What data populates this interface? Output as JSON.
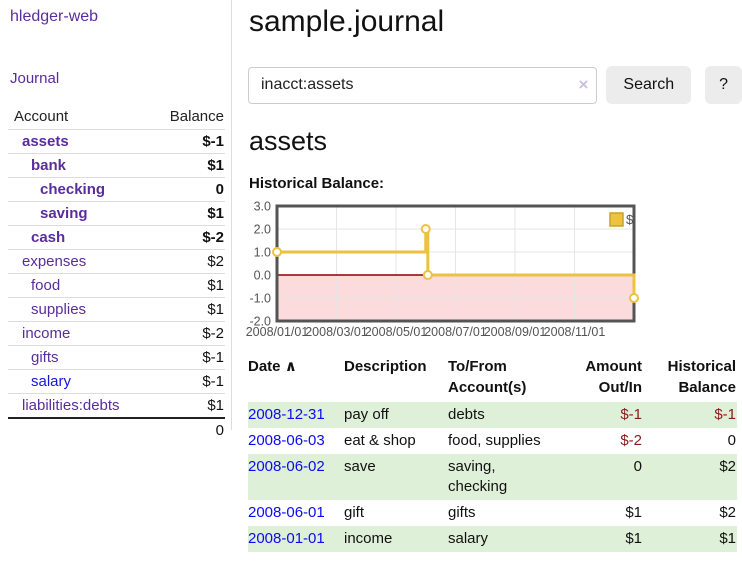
{
  "app": {
    "brand": "hledger-web"
  },
  "sidebar": {
    "journal_link": "Journal",
    "accounts_table": {
      "headers": {
        "account": "Account",
        "balance": "Balance"
      },
      "rows": [
        {
          "account": "assets",
          "balance": "$-1"
        },
        {
          "account": "bank",
          "balance": "$1"
        },
        {
          "account": "checking",
          "balance": "0"
        },
        {
          "account": "saving",
          "balance": "$1"
        },
        {
          "account": "cash",
          "balance": "$-2"
        },
        {
          "account": "expenses",
          "balance": "$2"
        },
        {
          "account": "food",
          "balance": "$1"
        },
        {
          "account": "supplies",
          "balance": "$1"
        },
        {
          "account": "income",
          "balance": "$-2"
        },
        {
          "account": "gifts",
          "balance": "$-1"
        },
        {
          "account": "salary",
          "balance": "$-1"
        },
        {
          "account": "liabilities:debts",
          "balance": "$1"
        }
      ],
      "total": "0"
    }
  },
  "header": {
    "title": "sample.journal"
  },
  "search": {
    "query": "inacct:assets",
    "clear_icon": "×",
    "search_label": "Search",
    "help_label": "?"
  },
  "account_page": {
    "title": "assets",
    "chart_heading": "Historical Balance:"
  },
  "chart_data": {
    "type": "line",
    "title": "Historical Balance",
    "legend_position": "top-right",
    "grid": true,
    "xlim": [
      0,
      12
    ],
    "ylim": [
      -2,
      3
    ],
    "y_ticks": [
      3.0,
      2.0,
      1.0,
      0.0,
      -1.0,
      -2.0
    ],
    "x_ticks": [
      {
        "x": 0,
        "label": "2008/01/01"
      },
      {
        "x": 2,
        "label": "2008/03/01"
      },
      {
        "x": 4,
        "label": "2008/05/01"
      },
      {
        "x": 6,
        "label": "2008/07/01"
      },
      {
        "x": 8,
        "label": "2008/09/01"
      },
      {
        "x": 10,
        "label": "2008/11/01"
      }
    ],
    "series": [
      {
        "name": "$",
        "color": "#edc240",
        "step": true,
        "points": [
          {
            "date": "2008-01-01",
            "x": 0,
            "y": 1
          },
          {
            "date": "2008-06-01",
            "x": 5,
            "y": 2
          },
          {
            "date": "2008-06-03",
            "x": 5.07,
            "y": 0
          },
          {
            "date": "2008-12-31",
            "x": 12,
            "y": -1
          }
        ]
      }
    ],
    "negative_fill": "#fbdbdb",
    "zero_line_color": "#8b0000",
    "grid_color": "#e6e6e6",
    "border_color": "#545454",
    "label_color": "#545454"
  },
  "register_table": {
    "headers": {
      "date": "Date",
      "sort_icon": "∧",
      "description": "Description",
      "accounts": "To/From Account(s)",
      "amount": "Amount Out/In",
      "balance": "Historical Balance"
    },
    "rows": [
      {
        "date": "2008-12-31",
        "description": "pay off",
        "accounts": "debts",
        "amount": "$-1",
        "balance": "$-1"
      },
      {
        "date": "2008-06-03",
        "description": "eat & shop",
        "accounts": "food, supplies",
        "amount": "$-2",
        "balance": "0"
      },
      {
        "date": "2008-06-02",
        "description": "save",
        "accounts": "saving, checking",
        "amount": "0",
        "balance": "$2"
      },
      {
        "date": "2008-06-01",
        "description": "gift",
        "accounts": "gifts",
        "amount": "$1",
        "balance": "$2"
      },
      {
        "date": "2008-01-01",
        "description": "income",
        "accounts": "salary",
        "amount": "$1",
        "balance": "$1"
      }
    ]
  },
  "colors": {
    "link_purple": "#5a2d9c",
    "link_blue": "#0b0bee",
    "negative_strong": "#8b1a1a",
    "negative_soft": "#b76e6e",
    "row_highlight_green": "#dff0d8",
    "chart_line_gold": "#edc240"
  }
}
